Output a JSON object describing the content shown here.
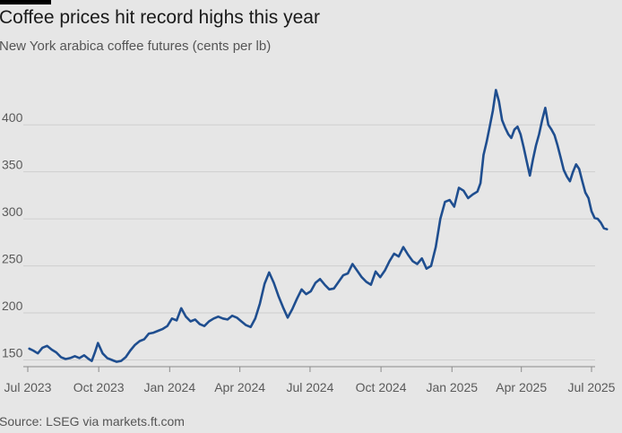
{
  "header": {
    "title": "Coffee prices hit record highs this year",
    "subtitle": "New York arabica coffee futures (cents per lb)"
  },
  "footer": {
    "source": "Source: LSEG via markets.ft.com"
  },
  "colors": {
    "line": "#1f4e8f",
    "grid": "#cfcfcf",
    "background": "#e6e6e6",
    "accent_bar": "#000000"
  },
  "chart_data": {
    "type": "line",
    "title": "Coffee prices hit record highs this year",
    "subtitle": "New York arabica coffee futures (cents per lb)",
    "xlabel": "",
    "ylabel": "",
    "ylim": [
      140,
      445
    ],
    "yticks": [
      150,
      200,
      250,
      300,
      350,
      400
    ],
    "xlim": [
      "2023-07-01",
      "2025-07-22"
    ],
    "xticks": [
      {
        "date": "2023-07-01",
        "label": "Jul 2023"
      },
      {
        "date": "2023-10-01",
        "label": "Oct 2023"
      },
      {
        "date": "2024-01-01",
        "label": "Jan 2024"
      },
      {
        "date": "2024-04-01",
        "label": "Apr 2024"
      },
      {
        "date": "2024-07-01",
        "label": "Jul 2024"
      },
      {
        "date": "2024-10-01",
        "label": "Oct 2024"
      },
      {
        "date": "2025-01-01",
        "label": "Jan 2025"
      },
      {
        "date": "2025-04-01",
        "label": "Apr 2025"
      },
      {
        "date": "2025-07-01",
        "label": "Jul 2025"
      }
    ],
    "grid": "horizontal",
    "legend": "none",
    "series": [
      {
        "x": [
          "2023-07-03",
          "2023-07-08",
          "2023-07-14",
          "2023-07-20",
          "2023-07-26",
          "2023-08-01",
          "2023-08-07",
          "2023-08-13",
          "2023-08-19",
          "2023-08-25",
          "2023-08-31",
          "2023-09-06",
          "2023-09-12",
          "2023-09-18",
          "2023-09-22",
          "2023-09-26",
          "2023-09-30",
          "2023-10-06",
          "2023-10-12",
          "2023-10-18",
          "2023-10-24",
          "2023-10-30",
          "2023-11-05",
          "2023-11-11",
          "2023-11-17",
          "2023-11-23",
          "2023-11-29",
          "2023-12-05",
          "2023-12-11",
          "2023-12-17",
          "2023-12-23",
          "2023-12-29",
          "2024-01-04",
          "2024-01-10",
          "2024-01-16",
          "2024-01-22",
          "2024-01-28",
          "2024-02-03",
          "2024-02-09",
          "2024-02-15",
          "2024-02-21",
          "2024-02-27",
          "2024-03-04",
          "2024-03-10",
          "2024-03-16",
          "2024-03-22",
          "2024-03-28",
          "2024-04-03",
          "2024-04-09",
          "2024-04-15",
          "2024-04-21",
          "2024-04-27",
          "2024-05-03",
          "2024-05-09",
          "2024-05-15",
          "2024-05-21",
          "2024-05-27",
          "2024-06-02",
          "2024-06-08",
          "2024-06-14",
          "2024-06-20",
          "2024-06-26",
          "2024-07-02",
          "2024-07-08",
          "2024-07-14",
          "2024-07-20",
          "2024-07-26",
          "2024-08-01",
          "2024-08-07",
          "2024-08-13",
          "2024-08-19",
          "2024-08-25",
          "2024-08-31",
          "2024-09-06",
          "2024-09-12",
          "2024-09-18",
          "2024-09-24",
          "2024-09-30",
          "2024-10-06",
          "2024-10-12",
          "2024-10-18",
          "2024-10-24",
          "2024-10-30",
          "2024-11-05",
          "2024-11-11",
          "2024-11-17",
          "2024-11-23",
          "2024-11-29",
          "2024-12-05",
          "2024-12-11",
          "2024-12-17",
          "2024-12-23",
          "2024-12-29",
          "2025-01-04",
          "2025-01-10",
          "2025-01-16",
          "2025-01-22",
          "2025-01-28",
          "2025-02-03",
          "2025-02-07",
          "2025-02-11",
          "2025-02-15",
          "2025-02-19",
          "2025-02-23",
          "2025-02-27",
          "2025-03-03",
          "2025-03-07",
          "2025-03-11",
          "2025-03-15",
          "2025-03-19",
          "2025-03-23",
          "2025-03-27",
          "2025-03-31",
          "2025-04-04",
          "2025-04-08",
          "2025-04-12",
          "2025-04-16",
          "2025-04-20",
          "2025-04-24",
          "2025-04-28",
          "2025-05-02",
          "2025-05-06",
          "2025-05-10",
          "2025-05-14",
          "2025-05-18",
          "2025-05-22",
          "2025-05-26",
          "2025-05-30",
          "2025-06-03",
          "2025-06-07",
          "2025-06-11",
          "2025-06-15",
          "2025-06-19",
          "2025-06-23",
          "2025-06-27",
          "2025-07-01",
          "2025-07-05",
          "2025-07-09",
          "2025-07-13",
          "2025-07-17",
          "2025-07-21"
        ],
        "values": [
          162,
          160,
          157,
          163,
          165,
          161,
          158,
          153,
          151,
          152,
          154,
          152,
          155,
          151,
          149,
          158,
          168,
          157,
          152,
          150,
          148,
          149,
          153,
          160,
          166,
          170,
          172,
          178,
          179,
          181,
          183,
          186,
          194,
          192,
          205,
          196,
          191,
          193,
          188,
          186,
          191,
          194,
          196,
          194,
          193,
          197,
          195,
          191,
          187,
          185,
          194,
          210,
          231,
          243,
          232,
          218,
          206,
          195,
          204,
          215,
          225,
          220,
          223,
          232,
          236,
          230,
          225,
          226,
          233,
          240,
          242,
          252,
          245,
          238,
          233,
          230,
          244,
          238,
          245,
          255,
          263,
          260,
          270,
          262,
          255,
          252,
          258,
          247,
          250,
          270,
          300,
          318,
          320,
          313,
          333,
          330,
          322,
          326,
          329,
          338,
          368,
          382,
          398,
          415,
          437,
          425,
          405,
          397,
          390,
          386,
          395,
          398,
          390,
          376,
          361,
          346,
          363,
          378,
          390,
          405,
          418,
          400,
          395,
          389,
          378,
          365,
          352,
          345,
          340,
          350,
          358,
          353,
          340,
          328,
          322,
          308,
          301,
          300,
          296,
          290,
          289
        ]
      }
    ]
  }
}
